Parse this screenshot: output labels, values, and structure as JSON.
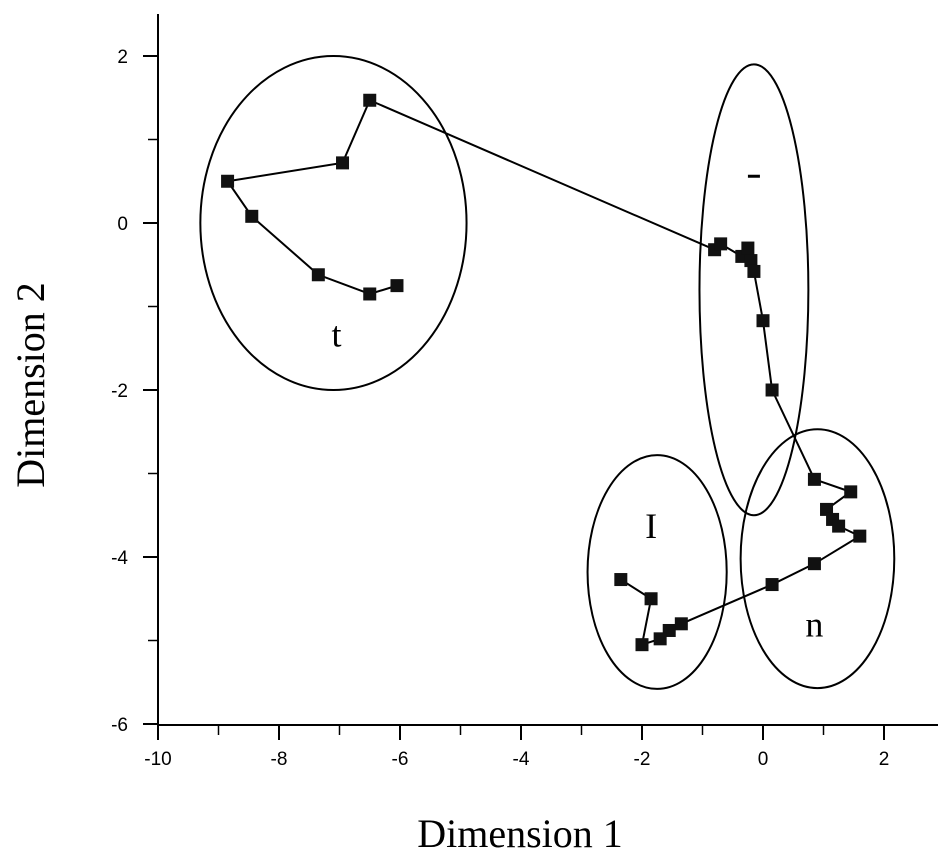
{
  "chart_data": {
    "type": "scatter",
    "title": "",
    "xlabel": "Dimension 1",
    "ylabel": "Dimension 2",
    "xlim": [
      -10,
      2.4
    ],
    "ylim": [
      -6,
      2.5
    ],
    "x_ticks": [
      -10,
      -8,
      -6,
      -4,
      -2,
      0,
      2
    ],
    "y_ticks": [
      -6,
      -4,
      -2,
      0,
      2
    ],
    "x_tick_labels": [
      "-10",
      "-8",
      "-6",
      "-4",
      "-2",
      "0",
      "2"
    ],
    "y_tick_labels": [
      "-6",
      "-4",
      "-2",
      "0",
      "2"
    ],
    "grid": false,
    "connected": true,
    "series": [
      {
        "x": [
          -6.05,
          -6.5,
          -7.35,
          -8.45,
          -8.85,
          -6.95,
          -6.5,
          -0.8,
          -0.7,
          -0.35,
          -0.25,
          -0.2,
          -0.15,
          0.0,
          0.15,
          0.85,
          1.45,
          1.05,
          1.15,
          1.25,
          1.6,
          0.85,
          0.15,
          -1.35,
          -1.55,
          -1.7,
          -2.0,
          -1.85,
          -2.35
        ],
        "y": [
          -0.75,
          -0.85,
          -0.62,
          0.08,
          0.5,
          0.72,
          1.47,
          -0.32,
          -0.25,
          -0.4,
          -0.3,
          -0.45,
          -0.58,
          -1.17,
          -2.0,
          -3.07,
          -3.22,
          -3.43,
          -3.55,
          -3.63,
          -3.75,
          -4.08,
          -4.33,
          -4.8,
          -4.88,
          -4.98,
          -5.05,
          -4.5,
          -4.27
        ]
      }
    ],
    "annotations": {
      "cluster_t": "t",
      "cluster_i": "I",
      "cluster_n": "n"
    },
    "clusters": [
      {
        "id": "t",
        "cx": -7.1,
        "cy": 0.0,
        "rx_units": 2.2,
        "ry_units": 2.0
      },
      {
        "id": "upper-center",
        "cx": -0.15,
        "cy": -0.8,
        "rx_units": 0.9,
        "ry_units": 2.7
      },
      {
        "id": "I",
        "cx": -1.75,
        "cy": -4.18,
        "rx_units": 1.15,
        "ry_units": 1.4
      },
      {
        "id": "n",
        "cx": 0.9,
        "cy": -4.02,
        "rx_units": 1.27,
        "ry_units": 1.55
      }
    ],
    "stray_mark": {
      "x": -0.15,
      "y": 0.56
    },
    "colors": {
      "ink": "#000000",
      "background": "#ffffff"
    }
  }
}
